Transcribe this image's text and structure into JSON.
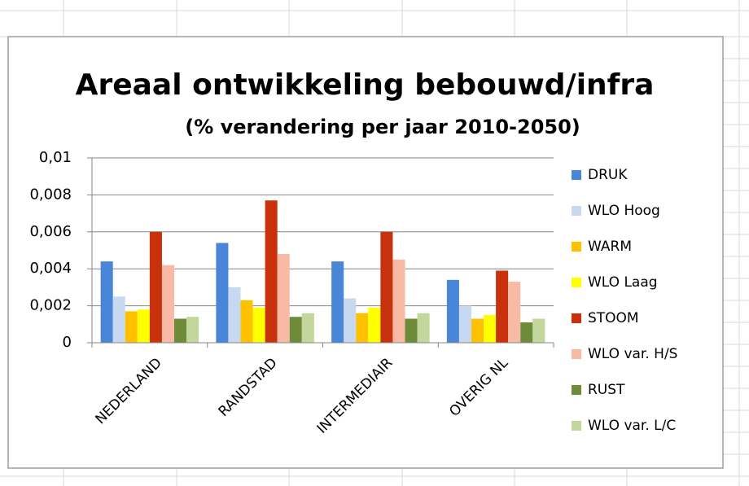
{
  "chart_data": {
    "type": "bar",
    "title": "Areaal ontwikkeling bebouwd/infra",
    "subtitle": "(% verandering per jaar 2010-2050)",
    "categories": [
      "NEDERLAND",
      "RANDSTAD",
      "INTERMEDIAIR",
      "OVERIG NL"
    ],
    "series": [
      {
        "name": "DRUK",
        "color": "#4a86d8",
        "values": [
          0.0044,
          0.0054,
          0.0044,
          0.0034
        ]
      },
      {
        "name": "WLO Hoog",
        "color": "#c6d9f1",
        "values": [
          0.0025,
          0.003,
          0.0024,
          0.002
        ]
      },
      {
        "name": "WARM",
        "color": "#ffc000",
        "values": [
          0.0017,
          0.0023,
          0.0016,
          0.0013
        ]
      },
      {
        "name": "WLO Laag",
        "color": "#ffff00",
        "values": [
          0.0018,
          0.0019,
          0.0019,
          0.0015
        ]
      },
      {
        "name": "STOOM",
        "color": "#c8310c",
        "values": [
          0.006,
          0.0077,
          0.006,
          0.0039
        ]
      },
      {
        "name": "WLO var. H/S",
        "color": "#f8b9a5",
        "values": [
          0.0042,
          0.0048,
          0.0045,
          0.0033
        ]
      },
      {
        "name": "RUST",
        "color": "#6e8b3a",
        "values": [
          0.0013,
          0.0014,
          0.0013,
          0.0011
        ]
      },
      {
        "name": "WLO var. L/C",
        "color": "#c3d69b",
        "values": [
          0.0014,
          0.0016,
          0.0016,
          0.0013
        ]
      }
    ],
    "ylim": [
      0,
      0.01
    ],
    "yticks": [
      0,
      {
        "value": 0.002,
        "label": "0,002"
      },
      {
        "value": 0.004,
        "label": "0,004"
      },
      {
        "value": 0.006,
        "label": "0,006"
      },
      {
        "value": 0.008,
        "label": "0,008"
      },
      {
        "value": 0.01,
        "label": "0,01"
      }
    ],
    "grid": true,
    "legend": "right"
  }
}
